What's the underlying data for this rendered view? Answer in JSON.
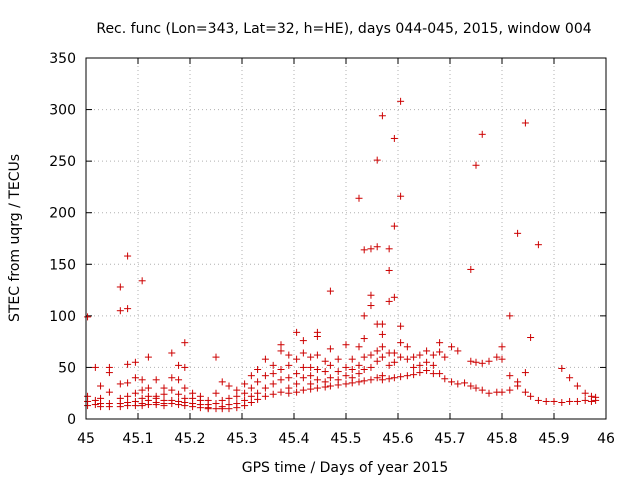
{
  "chart_data": {
    "type": "scatter",
    "title": "Rec. func (Lon=343, Lat=32, h=HE), days 044-045, 2015, window 004",
    "xlabel": "GPS time / Days of year 2015",
    "ylabel": "STEC from uqrg / TECUs",
    "xlim": [
      45,
      46
    ],
    "ylim": [
      0,
      350
    ],
    "xticks": [
      "45",
      "45.1",
      "45.2",
      "45.3",
      "45.4",
      "45.5",
      "45.6",
      "45.7",
      "45.8",
      "45.9",
      "46"
    ],
    "yticks": [
      "0",
      "50",
      "100",
      "150",
      "200",
      "250",
      "300",
      "350"
    ],
    "grid": true,
    "legend": "none",
    "marker": "plus",
    "color": "#cc0000",
    "points": [
      [
        45.003,
        99
      ],
      [
        45.003,
        22
      ],
      [
        45.003,
        17
      ],
      [
        45.003,
        13
      ],
      [
        45.018,
        50
      ],
      [
        45.018,
        18
      ],
      [
        45.018,
        14
      ],
      [
        45.028,
        32
      ],
      [
        45.028,
        20
      ],
      [
        45.028,
        15
      ],
      [
        45.028,
        12
      ],
      [
        45.045,
        50
      ],
      [
        45.045,
        45
      ],
      [
        45.045,
        26
      ],
      [
        45.045,
        15
      ],
      [
        45.045,
        12
      ],
      [
        45.066,
        128
      ],
      [
        45.066,
        105
      ],
      [
        45.066,
        34
      ],
      [
        45.066,
        20
      ],
      [
        45.066,
        15
      ],
      [
        45.066,
        12
      ],
      [
        45.08,
        158
      ],
      [
        45.08,
        107
      ],
      [
        45.08,
        53
      ],
      [
        45.08,
        35
      ],
      [
        45.08,
        22
      ],
      [
        45.08,
        16
      ],
      [
        45.08,
        13
      ],
      [
        45.095,
        55
      ],
      [
        45.095,
        40
      ],
      [
        45.095,
        25
      ],
      [
        45.095,
        17
      ],
      [
        45.095,
        13
      ],
      [
        45.108,
        134
      ],
      [
        45.108,
        38
      ],
      [
        45.108,
        28
      ],
      [
        45.108,
        20
      ],
      [
        45.108,
        15
      ],
      [
        45.108,
        13
      ],
      [
        45.12,
        60
      ],
      [
        45.12,
        30
      ],
      [
        45.12,
        22
      ],
      [
        45.12,
        18
      ],
      [
        45.12,
        14
      ],
      [
        45.135,
        38
      ],
      [
        45.135,
        22
      ],
      [
        45.135,
        20
      ],
      [
        45.135,
        16
      ],
      [
        45.135,
        14
      ],
      [
        45.15,
        30
      ],
      [
        45.15,
        24
      ],
      [
        45.15,
        18
      ],
      [
        45.15,
        15
      ],
      [
        45.15,
        13
      ],
      [
        45.165,
        64
      ],
      [
        45.165,
        40
      ],
      [
        45.165,
        28
      ],
      [
        45.165,
        18
      ],
      [
        45.165,
        15
      ],
      [
        45.178,
        52
      ],
      [
        45.178,
        38
      ],
      [
        45.178,
        24
      ],
      [
        45.178,
        17
      ],
      [
        45.178,
        14
      ],
      [
        45.19,
        74
      ],
      [
        45.19,
        50
      ],
      [
        45.19,
        30
      ],
      [
        45.19,
        20
      ],
      [
        45.19,
        16
      ],
      [
        45.19,
        13
      ],
      [
        45.205,
        25
      ],
      [
        45.205,
        20
      ],
      [
        45.205,
        15
      ],
      [
        45.205,
        12
      ],
      [
        45.22,
        22
      ],
      [
        45.22,
        18
      ],
      [
        45.22,
        14
      ],
      [
        45.22,
        11
      ],
      [
        45.235,
        18
      ],
      [
        45.235,
        14
      ],
      [
        45.235,
        11
      ],
      [
        45.235,
        10
      ],
      [
        45.25,
        60
      ],
      [
        45.25,
        25
      ],
      [
        45.25,
        15
      ],
      [
        45.25,
        10
      ],
      [
        45.262,
        36
      ],
      [
        45.262,
        18
      ],
      [
        45.262,
        12
      ],
      [
        45.262,
        10
      ],
      [
        45.275,
        32
      ],
      [
        45.275,
        20
      ],
      [
        45.275,
        14
      ],
      [
        45.275,
        10
      ],
      [
        45.29,
        28
      ],
      [
        45.29,
        22
      ],
      [
        45.29,
        15
      ],
      [
        45.29,
        11
      ],
      [
        45.305,
        34
      ],
      [
        45.305,
        25
      ],
      [
        45.305,
        18
      ],
      [
        45.305,
        13
      ],
      [
        45.318,
        42
      ],
      [
        45.318,
        30
      ],
      [
        45.318,
        22
      ],
      [
        45.318,
        16
      ],
      [
        45.33,
        48
      ],
      [
        45.33,
        36
      ],
      [
        45.33,
        25
      ],
      [
        45.33,
        19
      ],
      [
        45.345,
        58
      ],
      [
        45.345,
        42
      ],
      [
        45.345,
        30
      ],
      [
        45.345,
        22
      ],
      [
        45.36,
        52
      ],
      [
        45.36,
        44
      ],
      [
        45.36,
        34
      ],
      [
        45.36,
        24
      ],
      [
        45.375,
        72
      ],
      [
        45.375,
        66
      ],
      [
        45.375,
        48
      ],
      [
        45.375,
        38
      ],
      [
        45.375,
        26
      ],
      [
        45.39,
        62
      ],
      [
        45.39,
        52
      ],
      [
        45.39,
        40
      ],
      [
        45.39,
        30
      ],
      [
        45.39,
        25
      ],
      [
        45.405,
        84
      ],
      [
        45.405,
        58
      ],
      [
        45.405,
        44
      ],
      [
        45.405,
        34
      ],
      [
        45.405,
        26
      ],
      [
        45.418,
        76
      ],
      [
        45.418,
        64
      ],
      [
        45.418,
        50
      ],
      [
        45.418,
        40
      ],
      [
        45.418,
        28
      ],
      [
        45.432,
        60
      ],
      [
        45.432,
        50
      ],
      [
        45.432,
        42
      ],
      [
        45.432,
        34
      ],
      [
        45.432,
        29
      ],
      [
        45.445,
        84
      ],
      [
        45.445,
        80
      ],
      [
        45.445,
        62
      ],
      [
        45.445,
        48
      ],
      [
        45.445,
        38
      ],
      [
        45.445,
        30
      ],
      [
        45.46,
        56
      ],
      [
        45.46,
        46
      ],
      [
        45.46,
        36
      ],
      [
        45.46,
        31
      ],
      [
        45.47,
        124
      ],
      [
        45.47,
        68
      ],
      [
        45.47,
        52
      ],
      [
        45.47,
        40
      ],
      [
        45.47,
        32
      ],
      [
        45.485,
        58
      ],
      [
        45.485,
        46
      ],
      [
        45.485,
        38
      ],
      [
        45.485,
        33
      ],
      [
        45.5,
        72
      ],
      [
        45.5,
        50
      ],
      [
        45.5,
        42
      ],
      [
        45.5,
        34
      ],
      [
        45.512,
        58
      ],
      [
        45.512,
        48
      ],
      [
        45.512,
        40
      ],
      [
        45.512,
        35
      ],
      [
        45.525,
        214
      ],
      [
        45.525,
        70
      ],
      [
        45.525,
        52
      ],
      [
        45.525,
        44
      ],
      [
        45.525,
        36
      ],
      [
        45.535,
        164
      ],
      [
        45.535,
        100
      ],
      [
        45.535,
        78
      ],
      [
        45.535,
        60
      ],
      [
        45.535,
        48
      ],
      [
        45.535,
        37
      ],
      [
        45.548,
        165
      ],
      [
        45.548,
        120
      ],
      [
        45.548,
        110
      ],
      [
        45.548,
        62
      ],
      [
        45.548,
        50
      ],
      [
        45.548,
        38
      ],
      [
        45.56,
        251
      ],
      [
        45.56,
        167
      ],
      [
        45.56,
        92
      ],
      [
        45.56,
        66
      ],
      [
        45.56,
        56
      ],
      [
        45.56,
        40
      ],
      [
        45.57,
        294
      ],
      [
        45.57,
        92
      ],
      [
        45.57,
        82
      ],
      [
        45.57,
        70
      ],
      [
        45.57,
        60
      ],
      [
        45.57,
        42
      ],
      [
        45.57,
        38
      ],
      [
        45.583,
        165
      ],
      [
        45.583,
        144
      ],
      [
        45.583,
        114
      ],
      [
        45.583,
        64
      ],
      [
        45.583,
        52
      ],
      [
        45.583,
        39
      ],
      [
        45.593,
        272
      ],
      [
        45.593,
        187
      ],
      [
        45.593,
        118
      ],
      [
        45.593,
        64
      ],
      [
        45.593,
        55
      ],
      [
        45.593,
        40
      ],
      [
        45.605,
        308
      ],
      [
        45.605,
        216
      ],
      [
        45.605,
        90
      ],
      [
        45.605,
        74
      ],
      [
        45.605,
        60
      ],
      [
        45.605,
        41
      ],
      [
        45.618,
        70
      ],
      [
        45.618,
        58
      ],
      [
        45.618,
        42
      ],
      [
        45.63,
        60
      ],
      [
        45.63,
        50
      ],
      [
        45.63,
        43
      ],
      [
        45.642,
        62
      ],
      [
        45.642,
        52
      ],
      [
        45.642,
        45
      ],
      [
        45.655,
        66
      ],
      [
        45.655,
        55
      ],
      [
        45.655,
        47
      ],
      [
        45.668,
        62
      ],
      [
        45.668,
        52
      ],
      [
        45.668,
        44
      ],
      [
        45.68,
        74
      ],
      [
        45.68,
        65
      ],
      [
        45.68,
        44
      ],
      [
        45.69,
        60
      ],
      [
        45.69,
        39
      ],
      [
        45.703,
        70
      ],
      [
        45.703,
        36
      ],
      [
        45.715,
        66
      ],
      [
        45.715,
        34
      ],
      [
        45.728,
        35
      ],
      [
        45.74,
        145
      ],
      [
        45.74,
        56
      ],
      [
        45.74,
        32
      ],
      [
        45.75,
        246
      ],
      [
        45.75,
        55
      ],
      [
        45.75,
        30
      ],
      [
        45.762,
        276
      ],
      [
        45.762,
        54
      ],
      [
        45.762,
        28
      ],
      [
        45.775,
        56
      ],
      [
        45.775,
        25
      ],
      [
        45.79,
        60
      ],
      [
        45.79,
        26
      ],
      [
        45.8,
        70
      ],
      [
        45.8,
        58
      ],
      [
        45.8,
        26
      ],
      [
        45.815,
        100
      ],
      [
        45.815,
        42
      ],
      [
        45.815,
        28
      ],
      [
        45.83,
        180
      ],
      [
        45.83,
        36
      ],
      [
        45.83,
        32
      ],
      [
        45.845,
        287
      ],
      [
        45.845,
        45
      ],
      [
        45.845,
        26
      ],
      [
        45.855,
        79
      ],
      [
        45.855,
        22
      ],
      [
        45.87,
        169
      ],
      [
        45.87,
        18
      ],
      [
        45.885,
        17
      ],
      [
        45.9,
        17
      ],
      [
        45.915,
        49
      ],
      [
        45.915,
        16
      ],
      [
        45.93,
        40
      ],
      [
        45.93,
        17
      ],
      [
        45.945,
        32
      ],
      [
        45.945,
        17
      ],
      [
        45.96,
        25
      ],
      [
        45.96,
        18
      ],
      [
        45.972,
        22
      ],
      [
        45.972,
        17
      ],
      [
        45.98,
        21
      ],
      [
        45.98,
        18
      ]
    ]
  }
}
